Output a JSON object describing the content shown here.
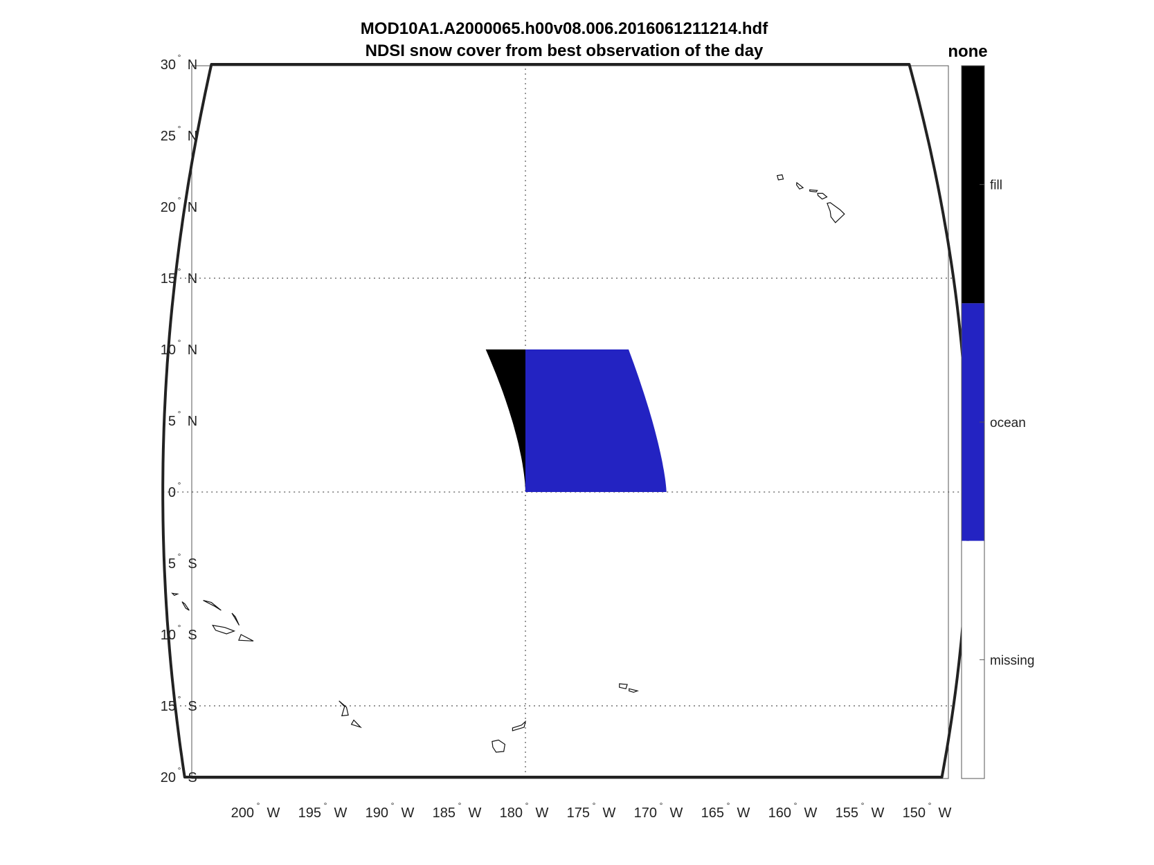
{
  "figure": {
    "title_line1": "MOD10A1.A2000065.h00v08.006.2016061211214.hdf",
    "title_line2": "NDSI snow cover from best observation of the day"
  },
  "map": {
    "lon_range": [
      -207,
      -147
    ],
    "lat_range": [
      -20,
      30
    ],
    "graticule_lons": [
      -180
    ],
    "graticule_lats": [
      -15,
      0,
      15
    ],
    "frame_color": "#222222",
    "graticule_color": "#555555",
    "lat_labels": [
      {
        "lat": 30,
        "text": "30",
        "hemi": "N"
      },
      {
        "lat": 25,
        "text": "25",
        "hemi": "N"
      },
      {
        "lat": 20,
        "text": "20",
        "hemi": "N"
      },
      {
        "lat": 15,
        "text": "15",
        "hemi": "N"
      },
      {
        "lat": 10,
        "text": "10",
        "hemi": "N"
      },
      {
        "lat": 5,
        "text": "5",
        "hemi": "N"
      },
      {
        "lat": 0,
        "text": "0",
        "hemi": ""
      },
      {
        "lat": -5,
        "text": "5",
        "hemi": "S"
      },
      {
        "lat": -10,
        "text": "10",
        "hemi": "S"
      },
      {
        "lat": -15,
        "text": "15",
        "hemi": "S"
      },
      {
        "lat": -20,
        "text": "20",
        "hemi": "S"
      }
    ],
    "lon_labels": [
      {
        "lon": -200,
        "text": "200",
        "hemi": "W"
      },
      {
        "lon": -195,
        "text": "195",
        "hemi": "W"
      },
      {
        "lon": -190,
        "text": "190",
        "hemi": "W"
      },
      {
        "lon": -185,
        "text": "185",
        "hemi": "W"
      },
      {
        "lon": -180,
        "text": "180",
        "hemi": "W"
      },
      {
        "lon": -175,
        "text": "175",
        "hemi": "W"
      },
      {
        "lon": -170,
        "text": "170",
        "hemi": "W"
      },
      {
        "lon": -165,
        "text": "165",
        "hemi": "W"
      },
      {
        "lon": -160,
        "text": "160",
        "hemi": "W"
      },
      {
        "lon": -155,
        "text": "155",
        "hemi": "W"
      },
      {
        "lon": -150,
        "text": "150",
        "hemi": "W"
      }
    ],
    "data_tile": {
      "lat_range": [
        0,
        10
      ],
      "lon_west_edge": -183,
      "lon_split": -180,
      "lon_east_edge_at_lat0": -169.5,
      "lon_east_edge_at_lat10": -172.2,
      "fill_color": "#000000",
      "ocean_color": "#2323c2"
    },
    "islands": [
      {
        "name": "Kauai",
        "pts": [
          [
            -159.75,
            22.2
          ],
          [
            -159.35,
            22.25
          ],
          [
            -159.3,
            21.95
          ],
          [
            -159.7,
            21.9
          ]
        ]
      },
      {
        "name": "Oahu",
        "pts": [
          [
            -158.25,
            21.7
          ],
          [
            -157.8,
            21.35
          ],
          [
            -158.1,
            21.25
          ],
          [
            -158.3,
            21.55
          ]
        ]
      },
      {
        "name": "Molokai",
        "pts": [
          [
            -157.3,
            21.2
          ],
          [
            -156.7,
            21.15
          ],
          [
            -156.8,
            21.05
          ],
          [
            -157.3,
            21.1
          ]
        ]
      },
      {
        "name": "Maui",
        "pts": [
          [
            -156.7,
            20.95
          ],
          [
            -156.3,
            20.95
          ],
          [
            -156.0,
            20.7
          ],
          [
            -156.4,
            20.55
          ],
          [
            -156.7,
            20.8
          ]
        ]
      },
      {
        "name": "Hawaii",
        "pts": [
          [
            -156.05,
            20.25
          ],
          [
            -155.8,
            20.3
          ],
          [
            -155.1,
            19.8
          ],
          [
            -154.8,
            19.5
          ],
          [
            -155.6,
            18.9
          ],
          [
            -155.9,
            19.3
          ],
          [
            -155.9,
            19.7
          ]
        ]
      },
      {
        "name": "Savaii",
        "pts": [
          [
            -172.8,
            -13.45
          ],
          [
            -172.2,
            -13.5
          ],
          [
            -172.3,
            -13.8
          ],
          [
            -172.8,
            -13.7
          ]
        ]
      },
      {
        "name": "Upolu",
        "pts": [
          [
            -172.05,
            -13.8
          ],
          [
            -171.4,
            -13.95
          ],
          [
            -171.7,
            -14.05
          ],
          [
            -172.05,
            -13.95
          ]
        ]
      },
      {
        "name": "Vanua Levu",
        "pts": [
          [
            -181.0,
            -16.55
          ],
          [
            -180.3,
            -16.35
          ],
          [
            -180.0,
            -16.1
          ],
          [
            -180.1,
            -16.5
          ],
          [
            -181.0,
            -16.75
          ]
        ]
      },
      {
        "name": "Viti Levu",
        "pts": [
          [
            -182.6,
            -17.5
          ],
          [
            -182.1,
            -17.4
          ],
          [
            -181.6,
            -17.7
          ],
          [
            -181.7,
            -18.2
          ],
          [
            -182.3,
            -18.25
          ],
          [
            -182.55,
            -17.9
          ]
        ]
      },
      {
        "name": "Vava'u",
        "pts": [
          [
            -194.35,
            -14.65
          ],
          [
            -193.95,
            -15.05
          ],
          [
            -194.2,
            -15.7
          ],
          [
            -193.7,
            -15.65
          ],
          [
            -193.8,
            -15.1
          ]
        ]
      },
      {
        "name": "Ha'apai",
        "pts": [
          [
            -193.3,
            -16.0
          ],
          [
            -192.8,
            -16.5
          ],
          [
            -193.5,
            -16.3
          ]
        ]
      },
      {
        "name": "Tonga A",
        "pts": [
          [
            -206.5,
            -7.1
          ],
          [
            -206.1,
            -7.15
          ],
          [
            -206.35,
            -7.25
          ]
        ]
      },
      {
        "name": "Tonga B",
        "pts": [
          [
            -205.8,
            -7.7
          ],
          [
            -205.55,
            -8.15
          ],
          [
            -205.3,
            -8.3
          ],
          [
            -205.6,
            -7.85
          ]
        ]
      },
      {
        "name": "Tonga C",
        "pts": [
          [
            -204.2,
            -7.6
          ],
          [
            -203.4,
            -8.0
          ],
          [
            -202.9,
            -8.3
          ],
          [
            -203.6,
            -7.75
          ]
        ]
      },
      {
        "name": "Tonga D",
        "pts": [
          [
            -202.1,
            -8.5
          ],
          [
            -201.8,
            -9.0
          ],
          [
            -201.6,
            -9.35
          ],
          [
            -201.85,
            -8.75
          ]
        ]
      },
      {
        "name": "Tonga E",
        "pts": [
          [
            -203.6,
            -9.35
          ],
          [
            -202.7,
            -9.5
          ],
          [
            -202.0,
            -9.75
          ],
          [
            -202.6,
            -9.95
          ],
          [
            -203.4,
            -9.7
          ]
        ]
      },
      {
        "name": "Tonga F",
        "pts": [
          [
            -201.5,
            -10.0
          ],
          [
            -200.6,
            -10.45
          ],
          [
            -201.7,
            -10.4
          ]
        ]
      }
    ]
  },
  "colorbar": {
    "title": "none",
    "segments": [
      {
        "label": "fill",
        "color": "#000000"
      },
      {
        "label": "ocean",
        "color": "#2323c2"
      },
      {
        "label": "missing",
        "color": "#ffffff"
      }
    ]
  }
}
